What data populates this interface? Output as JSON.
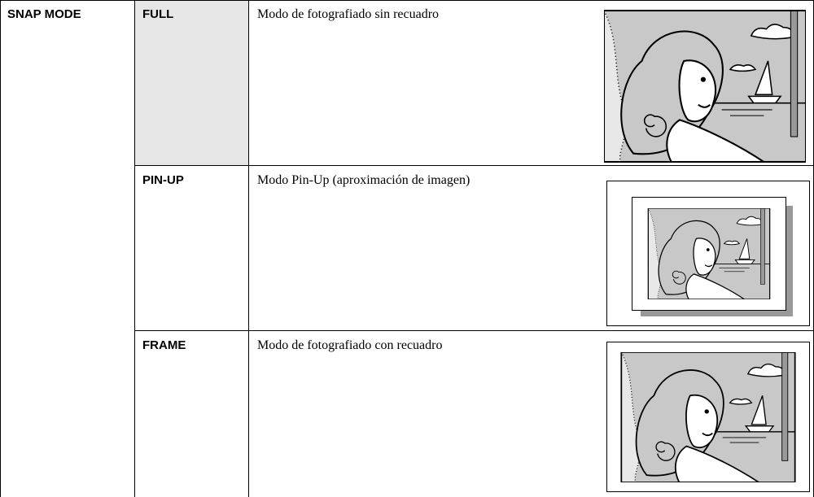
{
  "table": {
    "header": "SNAP MODE",
    "rows": [
      [
        "FULL",
        "Modo de fotografiado sin recuadro"
      ],
      [
        "PIN-UP",
        "Modo Pin-Up (aproximación de imagen)"
      ],
      [
        "FRAME",
        "Modo de fotografiado con recuadro"
      ]
    ]
  }
}
